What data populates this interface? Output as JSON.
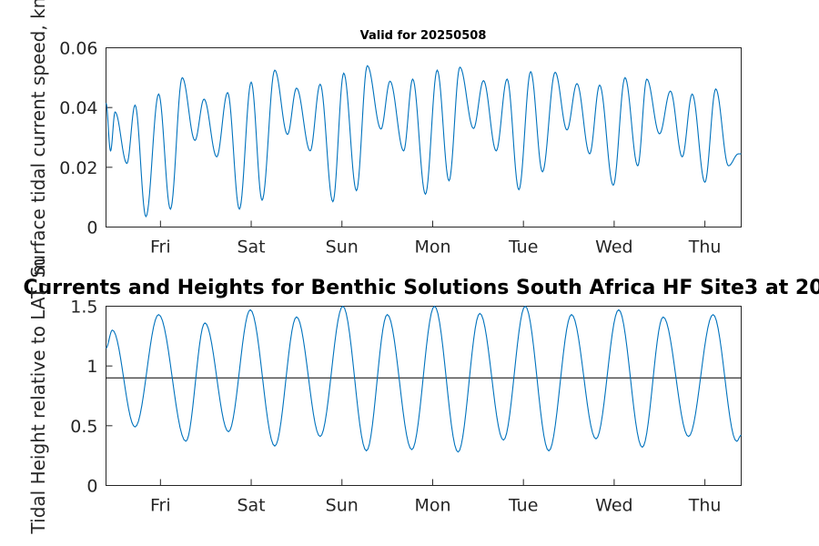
{
  "chart_data": [
    {
      "type": "line",
      "title": "Valid for 20250508",
      "ylabel": "Surface tidal current speed, kn",
      "xlabel": "",
      "x_tick_labels": [
        "Fri",
        "Sat",
        "Sun",
        "Mon",
        "Tue",
        "Wed",
        "Thu"
      ],
      "x_tick_positions_days": [
        0.6,
        1.6,
        2.6,
        3.6,
        4.6,
        5.6,
        6.6
      ],
      "xlim_days": [
        0,
        7
      ],
      "ylim": [
        0,
        0.06
      ],
      "y_ticks": [
        "0",
        "0.02",
        "0.04",
        "0.06"
      ],
      "y_tick_values": [
        0,
        0.02,
        0.04,
        0.06
      ],
      "grid": false,
      "series_color": "#0072bd",
      "x_days": [
        0.05,
        0.1,
        0.23,
        0.32,
        0.44,
        0.58,
        0.71,
        0.84,
        0.98,
        1.08,
        1.22,
        1.34,
        1.47,
        1.6,
        1.72,
        1.86,
        2.0,
        2.1,
        2.25,
        2.36,
        2.5,
        2.62,
        2.76,
        2.88,
        3.03,
        3.13,
        3.28,
        3.38,
        3.52,
        3.65,
        3.78,
        3.9,
        4.05,
        4.16,
        4.3,
        4.42,
        4.55,
        4.68,
        4.81,
        4.95,
        5.08,
        5.19,
        5.33,
        5.44,
        5.59,
        5.72,
        5.86,
        5.96,
        6.1,
        6.22,
        6.35,
        6.46,
        6.6,
        6.72,
        6.86,
        6.97
      ],
      "values": [
        0.0255,
        0.0385,
        0.0213,
        0.0408,
        0.0035,
        0.0445,
        0.006,
        0.05,
        0.029,
        0.0428,
        0.0235,
        0.045,
        0.006,
        0.0485,
        0.009,
        0.0525,
        0.031,
        0.0465,
        0.0255,
        0.0478,
        0.0085,
        0.0515,
        0.0122,
        0.054,
        0.0328,
        0.0488,
        0.0255,
        0.0495,
        0.011,
        0.0525,
        0.0155,
        0.0535,
        0.033,
        0.049,
        0.0255,
        0.0495,
        0.0125,
        0.052,
        0.0185,
        0.0518,
        0.0325,
        0.048,
        0.0245,
        0.0475,
        0.014,
        0.05,
        0.0205,
        0.0495,
        0.0312,
        0.0455,
        0.0235,
        0.0445,
        0.015,
        0.0462,
        0.0205,
        0.0245
      ]
    },
    {
      "type": "line",
      "title": "Currents and Heights for Benthic Solutions South Africa HF Site3 at 20",
      "ylabel": "Tidal Height relative to LAT, m",
      "xlabel": "",
      "x_tick_labels": [
        "Fri",
        "Sat",
        "Sun",
        "Mon",
        "Tue",
        "Wed",
        "Thu"
      ],
      "x_tick_positions_days": [
        0.6,
        1.6,
        2.6,
        3.6,
        4.6,
        5.6,
        6.6
      ],
      "xlim_days": [
        0,
        7
      ],
      "ylim": [
        0,
        1.5
      ],
      "y_ticks": [
        "0",
        "0.5",
        "1",
        "1.5"
      ],
      "y_tick_values": [
        0,
        0.5,
        1,
        1.5
      ],
      "grid": false,
      "reference_line_y": 0.9,
      "series_color": "#0072bd",
      "x_days": [
        0.07,
        0.32,
        0.58,
        0.88,
        1.09,
        1.35,
        1.59,
        1.86,
        2.1,
        2.36,
        2.61,
        2.87,
        3.1,
        3.37,
        3.62,
        3.88,
        4.12,
        4.38,
        4.62,
        4.88,
        5.13,
        5.4,
        5.65,
        5.91,
        6.14,
        6.42,
        6.69,
        6.95
      ],
      "values": [
        1.3,
        0.49,
        1.43,
        0.37,
        1.36,
        0.45,
        1.47,
        0.33,
        1.41,
        0.41,
        1.5,
        0.29,
        1.43,
        0.3,
        1.5,
        0.28,
        1.44,
        0.38,
        1.5,
        0.29,
        1.43,
        0.39,
        1.47,
        0.32,
        1.41,
        0.41,
        1.43,
        0.37
      ]
    }
  ]
}
